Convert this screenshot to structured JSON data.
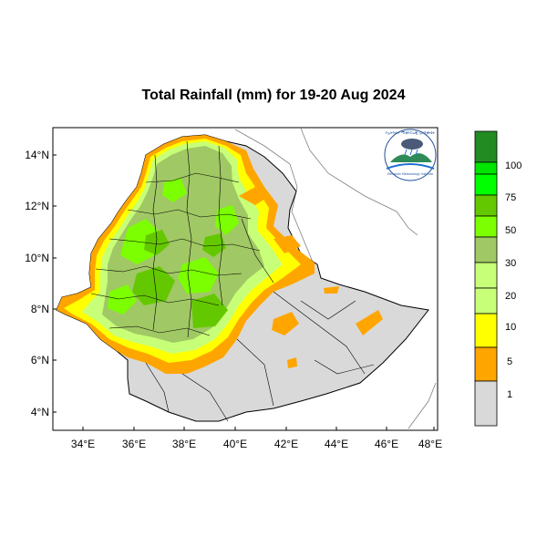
{
  "title": "Total Rainfall (mm) for 19-20 Aug 2024",
  "lat_labels": [
    "14°N",
    "12°N",
    "10°N",
    "8°N",
    "6°N",
    "4°N"
  ],
  "lon_labels": [
    "34°E",
    "36°E",
    "38°E",
    "40°E",
    "42°E",
    "44°E",
    "46°E",
    "48°E"
  ],
  "legend": {
    "labels": [
      "1",
      "5",
      "10",
      "20",
      "30",
      "50",
      "75",
      "100"
    ],
    "colors": [
      "#d9d9d9",
      "#ffa500",
      "#ffff00",
      "#c8ff78",
      "#a0c864",
      "#7cff00",
      "#64c800",
      "#00ff00",
      "#00e600",
      "#228b22"
    ]
  },
  "logo": {
    "text_top": "የኢትዮጵያ ሚቲዮሮሎጂ ኢንስቲትዩት",
    "text_bottom": "Ethiopian Meteorology Institute"
  },
  "colors": {
    "land_dry": "#d9d9d9",
    "orange": "#ffa500",
    "yellow": "#ffff00",
    "light_green": "#c8ff78",
    "olive_green": "#a0c864",
    "bright_green": "#7cff00",
    "green": "#64c800",
    "boundary": "#000000",
    "coast": "#808080"
  }
}
